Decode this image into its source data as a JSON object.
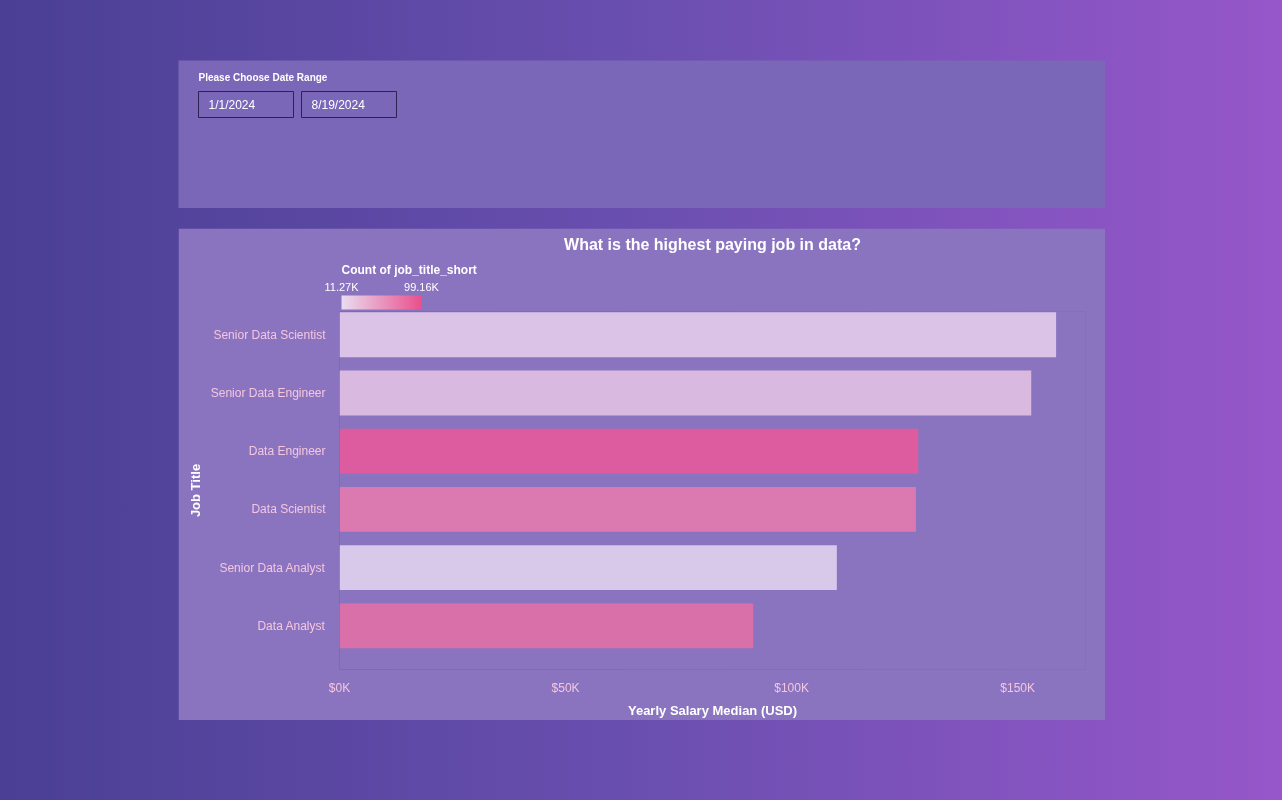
{
  "chart_data": [
    {
      "type": "other",
      "title": "Please Choose Date Range",
      "annotations": [
        "1/1/2024",
        "8/19/2024"
      ]
    },
    {
      "type": "bar",
      "orientation": "horizontal",
      "title": "What is the highest paying job in data?",
      "categories": [
        "Senior Data Scientist",
        "Senior Data Engineer",
        "Data Engineer",
        "Data Scientist",
        "Senior Data Analyst",
        "Data Analyst"
      ],
      "values": [
        158500,
        153000,
        128000,
        127500,
        110000,
        91500
      ],
      "colors": [
        "#dac3e6",
        "#d9b9e0",
        "#dc5c9f",
        "#da7ab0",
        "#d8c9ea",
        "#d970aa"
      ],
      "xlabel": "Yearly Salary Median (USD)",
      "ylabel": "Job Title",
      "xlim": [
        0,
        165000
      ],
      "xticks": [
        {
          "value": 0,
          "label": "$0K"
        },
        {
          "value": 50000,
          "label": "$50K"
        },
        {
          "value": 100000,
          "label": "$100K"
        },
        {
          "value": 150000,
          "label": "$150K"
        }
      ],
      "clabel": "Count of job_title_short",
      "clim": [
        11270,
        99160
      ],
      "cticks": [
        {
          "value": 11270,
          "label": "11.27K"
        },
        {
          "value": 99160,
          "label": "99.16K"
        }
      ]
    }
  ]
}
